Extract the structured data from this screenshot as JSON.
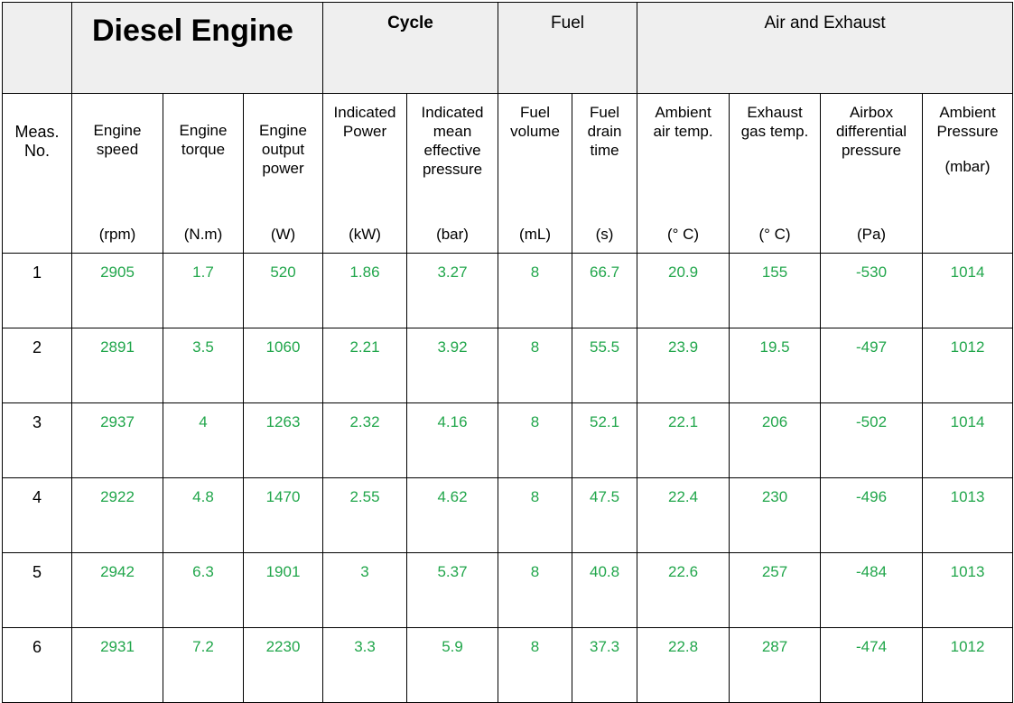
{
  "title": "Diesel Engine",
  "groups": {
    "cycle": "Cycle",
    "fuel": "Fuel",
    "air_exhaust": "Air and Exhaust"
  },
  "columns": [
    {
      "label": "Meas. No.",
      "lines": [
        "Meas.",
        "No."
      ],
      "unit": ""
    },
    {
      "label": "Engine speed",
      "lines": [
        "Engine",
        "speed"
      ],
      "unit": "(rpm)"
    },
    {
      "label": "Engine torque",
      "lines": [
        "Engine",
        "torque"
      ],
      "unit": "(N.m)"
    },
    {
      "label": "Engine output power",
      "lines": [
        "Engine",
        "output",
        "power"
      ],
      "unit": "(W)"
    },
    {
      "label": "Indicated Power",
      "lines": [
        "Indicated",
        "Power"
      ],
      "unit": "(kW)"
    },
    {
      "label": "Indicated mean effective pressure",
      "lines": [
        "Indicated",
        "mean",
        "effective",
        "pressure"
      ],
      "unit": "(bar)"
    },
    {
      "label": "Fuel volume",
      "lines": [
        "Fuel",
        "volume"
      ],
      "unit": "(mL)"
    },
    {
      "label": "Fuel drain time",
      "lines": [
        "Fuel",
        "drain",
        "time"
      ],
      "unit": "(s)"
    },
    {
      "label": "Ambient air temp.",
      "lines": [
        "Ambient",
        "air temp."
      ],
      "unit": "(° C)"
    },
    {
      "label": "Exhaust gas temp.",
      "lines": [
        "Exhaust",
        "gas temp."
      ],
      "unit": "(° C)"
    },
    {
      "label": "Airbox differential pressure",
      "lines": [
        "Airbox",
        "differential",
        "pressure"
      ],
      "unit": "(Pa)"
    },
    {
      "label": "Ambient Pressure",
      "lines": [
        "Ambient",
        "Pressure"
      ],
      "unit": "(mbar)"
    }
  ],
  "rows": [
    [
      "1",
      "2905",
      "1.7",
      "520",
      "1.86",
      "3.27",
      "8",
      "66.7",
      "20.9",
      "155",
      "-530",
      "1014"
    ],
    [
      "2",
      "2891",
      "3.5",
      "1060",
      "2.21",
      "3.92",
      "8",
      "55.5",
      "23.9",
      "19.5",
      "-497",
      "1012"
    ],
    [
      "3",
      "2937",
      "4",
      "1263",
      "2.32",
      "4.16",
      "8",
      "52.1",
      "22.1",
      "206",
      "-502",
      "1014"
    ],
    [
      "4",
      "2922",
      "4.8",
      "1470",
      "2.55",
      "4.62",
      "8",
      "47.5",
      "22.4",
      "230",
      "-496",
      "1013"
    ],
    [
      "5",
      "2942",
      "6.3",
      "1901",
      "3",
      "5.37",
      "8",
      "40.8",
      "22.6",
      "257",
      "-484",
      "1013"
    ],
    [
      "6",
      "2931",
      "7.2",
      "2230",
      "3.3",
      "5.9",
      "8",
      "37.3",
      "22.8",
      "287",
      "-474",
      "1012"
    ]
  ],
  "colors": {
    "value": "#21a64b",
    "group_bg": "#efefef",
    "border": "#000000"
  }
}
